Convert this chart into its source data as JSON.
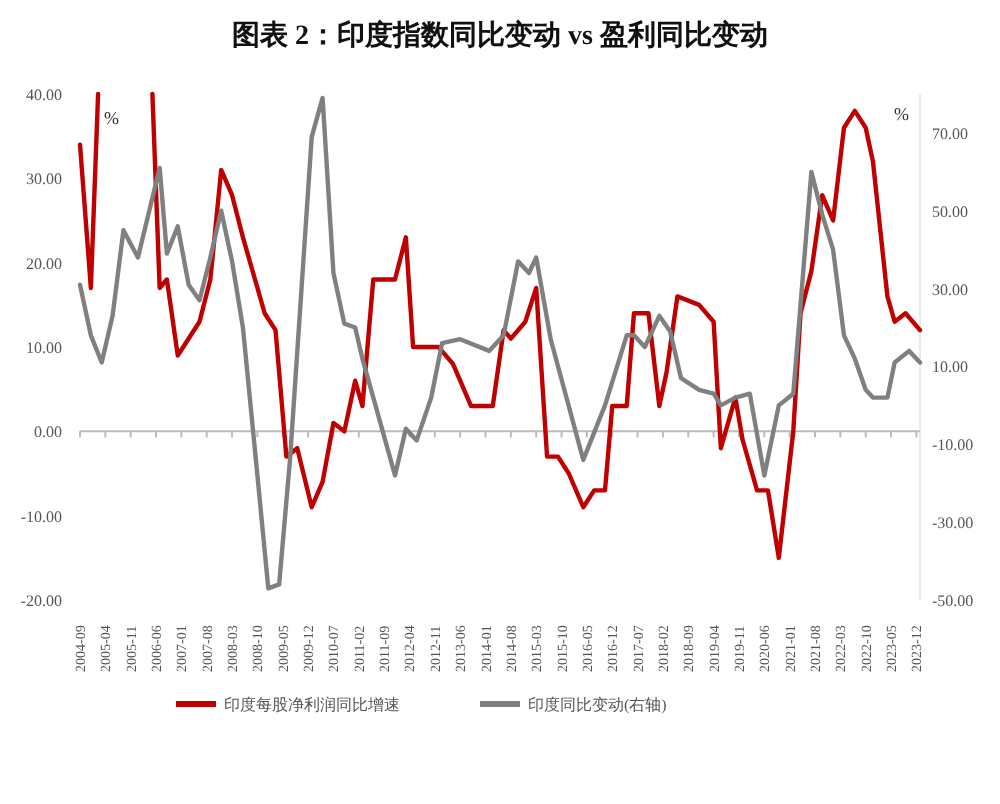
{
  "chart_data": {
    "type": "line",
    "title": "图表 2：印度指数同比变动 vs 盈利同比变动",
    "ylabel": "%",
    "y2label": "%",
    "xlim": [
      "2004-09",
      "2024-01"
    ],
    "xticks": [
      "2004-09",
      "2005-04",
      "2005-11",
      "2006-06",
      "2007-01",
      "2007-08",
      "2008-03",
      "2008-10",
      "2009-05",
      "2009-12",
      "2010-07",
      "2011-02",
      "2011-09",
      "2012-04",
      "2012-11",
      "2013-06",
      "2014-01",
      "2014-08",
      "2015-03",
      "2015-10",
      "2016-05",
      "2016-12",
      "2017-07",
      "2018-02",
      "2018-09",
      "2019-04",
      "2019-11",
      "2020-06",
      "2021-01",
      "2021-08",
      "2022-03",
      "2022-10",
      "2023-05",
      "2023-12"
    ],
    "ylim": [
      -20,
      40
    ],
    "yticks": [
      {
        "value": -20,
        "label": "-20.00"
      },
      {
        "value": -10,
        "label": "-10.00"
      },
      {
        "value": 0,
        "label": "0.00"
      },
      {
        "value": 10,
        "label": "10.00"
      },
      {
        "value": 20,
        "label": "20.00"
      },
      {
        "value": 30,
        "label": "30.00"
      },
      {
        "value": 40,
        "label": "40.00"
      }
    ],
    "y2lim": [
      -50,
      80
    ],
    "y2ticks": [
      {
        "value": -50,
        "label": "-50.00"
      },
      {
        "value": -30,
        "label": "-30.00"
      },
      {
        "value": -10,
        "label": "-10.00"
      },
      {
        "value": 10,
        "label": "10.00"
      },
      {
        "value": 30,
        "label": "30.00"
      },
      {
        "value": 50,
        "label": "50.00"
      },
      {
        "value": 70,
        "label": "70.00"
      }
    ],
    "legend": "bottom",
    "marker": "none",
    "line_style": "solid",
    "series": [
      {
        "name": "印度每股净利润同比增速",
        "color": "#c00000",
        "x": [
          "2004-09",
          "2004-12",
          "2005-02",
          "2005-10",
          "2006-05",
          "2006-07",
          "2006-09",
          "2006-12",
          "2007-06",
          "2007-09",
          "2007-12",
          "2008-03",
          "2008-06",
          "2008-10",
          "2008-12",
          "2009-03",
          "2009-06",
          "2009-09",
          "2010-01",
          "2010-04",
          "2010-07",
          "2010-10",
          "2011-01",
          "2011-03",
          "2011-06",
          "2011-12",
          "2012-03",
          "2012-05",
          "2012-12",
          "2013-04",
          "2013-06",
          "2013-09",
          "2014-03",
          "2014-06",
          "2014-08",
          "2014-12",
          "2015-03",
          "2015-06",
          "2015-09",
          "2015-12",
          "2016-04",
          "2016-07",
          "2016-10",
          "2016-12",
          "2017-04",
          "2017-06",
          "2017-10",
          "2018-01",
          "2018-03",
          "2018-06",
          "2018-12",
          "2019-04",
          "2019-06",
          "2019-10",
          "2019-12",
          "2020-04",
          "2020-07",
          "2020-10",
          "2021-02",
          "2021-04",
          "2021-07",
          "2021-10",
          "2022-01",
          "2022-04",
          "2022-07",
          "2022-10",
          "2022-12",
          "2023-04",
          "2023-06",
          "2023-09",
          "2024-01"
        ],
        "values": [
          34,
          17,
          40,
          null,
          40,
          17,
          18,
          9,
          13,
          18,
          31,
          28,
          23,
          17,
          14,
          12,
          -3,
          -2,
          -9,
          -6,
          1,
          0,
          6,
          3,
          18,
          18,
          23,
          10,
          10,
          8,
          6,
          3,
          3,
          12,
          11,
          13,
          17,
          -3,
          -3,
          -5,
          -9,
          -7,
          -7,
          3,
          3,
          14,
          14,
          3,
          7,
          16,
          15,
          13,
          -2,
          4,
          -1,
          -7,
          -7,
          -15,
          0,
          14,
          19,
          28,
          25,
          36,
          38,
          36,
          32,
          16,
          13,
          14,
          12
        ]
      },
      {
        "name": "印度同比变动(右轴)",
        "color": "#808080",
        "axis": "y2",
        "x": [
          "2004-09",
          "2004-12",
          "2005-03",
          "2005-06",
          "2005-09",
          "2006-01",
          "2006-07",
          "2006-09",
          "2006-12",
          "2007-03",
          "2007-06",
          "2007-09",
          "2007-12",
          "2008-03",
          "2008-06",
          "2008-10",
          "2009-01",
          "2009-04",
          "2009-07",
          "2010-01",
          "2010-04",
          "2010-07",
          "2010-10",
          "2011-01",
          "2011-03",
          "2011-12",
          "2012-03",
          "2012-06",
          "2012-10",
          "2013-01",
          "2013-06",
          "2014-02",
          "2014-06",
          "2014-10",
          "2015-01",
          "2015-03",
          "2015-07",
          "2016-04",
          "2016-10",
          "2017-04",
          "2017-06",
          "2017-09",
          "2018-01",
          "2018-04",
          "2018-07",
          "2018-12",
          "2019-04",
          "2019-06",
          "2019-10",
          "2020-02",
          "2020-06",
          "2020-10",
          "2021-02",
          "2021-07",
          "2021-10",
          "2022-01",
          "2022-04",
          "2022-07",
          "2022-10",
          "2022-12",
          "2023-04",
          "2023-06",
          "2023-10",
          "2024-01"
        ],
        "values": [
          31,
          18,
          11,
          23,
          45,
          38,
          61,
          39,
          46,
          31,
          27,
          38,
          50,
          37,
          20,
          -18,
          -47,
          -46,
          -14,
          69,
          79,
          34,
          21,
          20,
          12,
          -18,
          -6,
          -9,
          2,
          16,
          17,
          14,
          18,
          37,
          34,
          38,
          17,
          -14,
          0,
          18,
          18,
          15,
          23,
          19,
          7,
          4,
          3,
          0,
          2,
          3,
          -18,
          0,
          3,
          60,
          49,
          40,
          18,
          12,
          4,
          2,
          2,
          11,
          14,
          11
        ]
      }
    ]
  }
}
